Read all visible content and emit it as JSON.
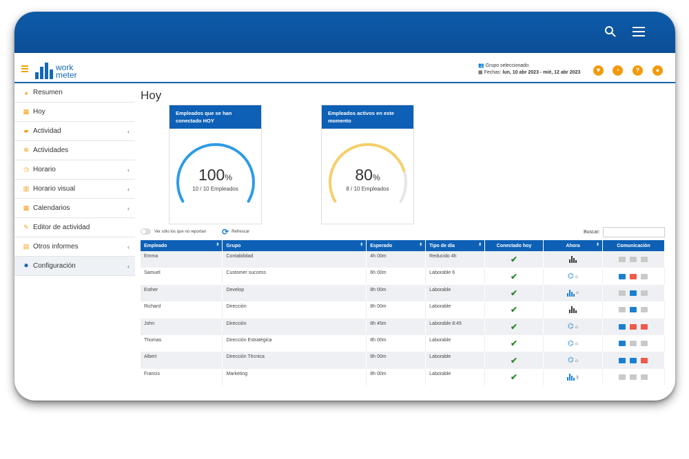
{
  "header": {
    "logo_line1": "work",
    "logo_line2": "meter",
    "group_label": "Grupo seleccionado:",
    "dates_label": "Fechas:",
    "dates_value": "lun, 10 abr 2023 - mié, 12 abr 2023"
  },
  "sidebar": {
    "items": [
      {
        "label": "Resumen",
        "icon": "dashboard-icon",
        "chevron": false
      },
      {
        "label": "Hoy",
        "icon": "calendar-icon",
        "chevron": false
      },
      {
        "label": "Actividad",
        "icon": "area-chart-icon",
        "chevron": true
      },
      {
        "label": "Actividades",
        "icon": "cogs-icon",
        "chevron": false
      },
      {
        "label": "Horario",
        "icon": "clock-icon",
        "chevron": true
      },
      {
        "label": "Horario visual",
        "icon": "bar-chart-icon",
        "chevron": true
      },
      {
        "label": "Calendarios",
        "icon": "calendar-icon",
        "chevron": true
      },
      {
        "label": "Editor de actividad",
        "icon": "edit-icon",
        "chevron": false
      },
      {
        "label": "Otros informes",
        "icon": "table-icon",
        "chevron": true
      },
      {
        "label": "Configuración",
        "icon": "gear-icon",
        "chevron": true
      }
    ]
  },
  "main": {
    "title": "Hoy",
    "card1": {
      "title": "Empleados que se han conectado HOY",
      "value": "100",
      "unit": "%",
      "sub": "10 / 10 Empleados",
      "fraction": 1.0,
      "color": "#2e9be8"
    },
    "card2": {
      "title": "Empleados activos en este momento",
      "value": "80",
      "unit": "%",
      "sub": "8 / 10 Empleados",
      "fraction": 0.8,
      "color": "#f7cf6a"
    },
    "toggle_label": "Ver sólo los que no reportan",
    "refresh_label": "Refrescar",
    "search_label": "Buscar:"
  },
  "table": {
    "headers": [
      "Empleado",
      "Grupo",
      "Esperado",
      "Tipo de día",
      "Conectado hoy",
      "Ahora",
      "Comunicación"
    ],
    "rows": [
      {
        "empleado": "Emma",
        "grupo": "Contabilidad",
        "esperado": "4h 00m",
        "tipo": "Reducido 4h",
        "ahora": "bars-dark",
        "mail": "grey",
        "phone": "grey",
        "video": "grey"
      },
      {
        "empleado": "Samuel",
        "grupo": "Customer success",
        "esperado": "6h 00m",
        "tipo": "Laborable 6",
        "ahora": "remote-home",
        "mail": "blue",
        "phone": "red",
        "video": "grey"
      },
      {
        "empleado": "Esther",
        "grupo": "Develop",
        "esperado": "8h 00m",
        "tipo": "Laborable",
        "ahora": "bars-blue-home",
        "mail": "grey",
        "phone": "blue",
        "video": "grey"
      },
      {
        "empleado": "Richard",
        "grupo": "Dirección",
        "esperado": "8h 00m",
        "tipo": "Laborable",
        "ahora": "bars-dark",
        "mail": "grey",
        "phone": "blue",
        "video": "grey"
      },
      {
        "empleado": "John",
        "grupo": "Dirección",
        "esperado": "8h 45m",
        "tipo": "Laborable 8:45",
        "ahora": "remote-home",
        "mail": "blue",
        "phone": "red",
        "video": "red"
      },
      {
        "empleado": "Thomas",
        "grupo": "Dirección Estratégica",
        "esperado": "8h 00m",
        "tipo": "Laborable",
        "ahora": "remote-home",
        "mail": "blue",
        "phone": "grey",
        "video": "grey"
      },
      {
        "empleado": "Albert",
        "grupo": "Dirección Técnica",
        "esperado": "8h 00m",
        "tipo": "Laborable",
        "ahora": "remote-home",
        "mail": "blue",
        "phone": "blue",
        "video": "red"
      },
      {
        "empleado": "Francis",
        "grupo": "Marketing",
        "esperado": "8h 00m",
        "tipo": "Laborable",
        "ahora": "bars-blue-office",
        "mail": "grey",
        "phone": "grey",
        "video": "grey"
      }
    ]
  }
}
